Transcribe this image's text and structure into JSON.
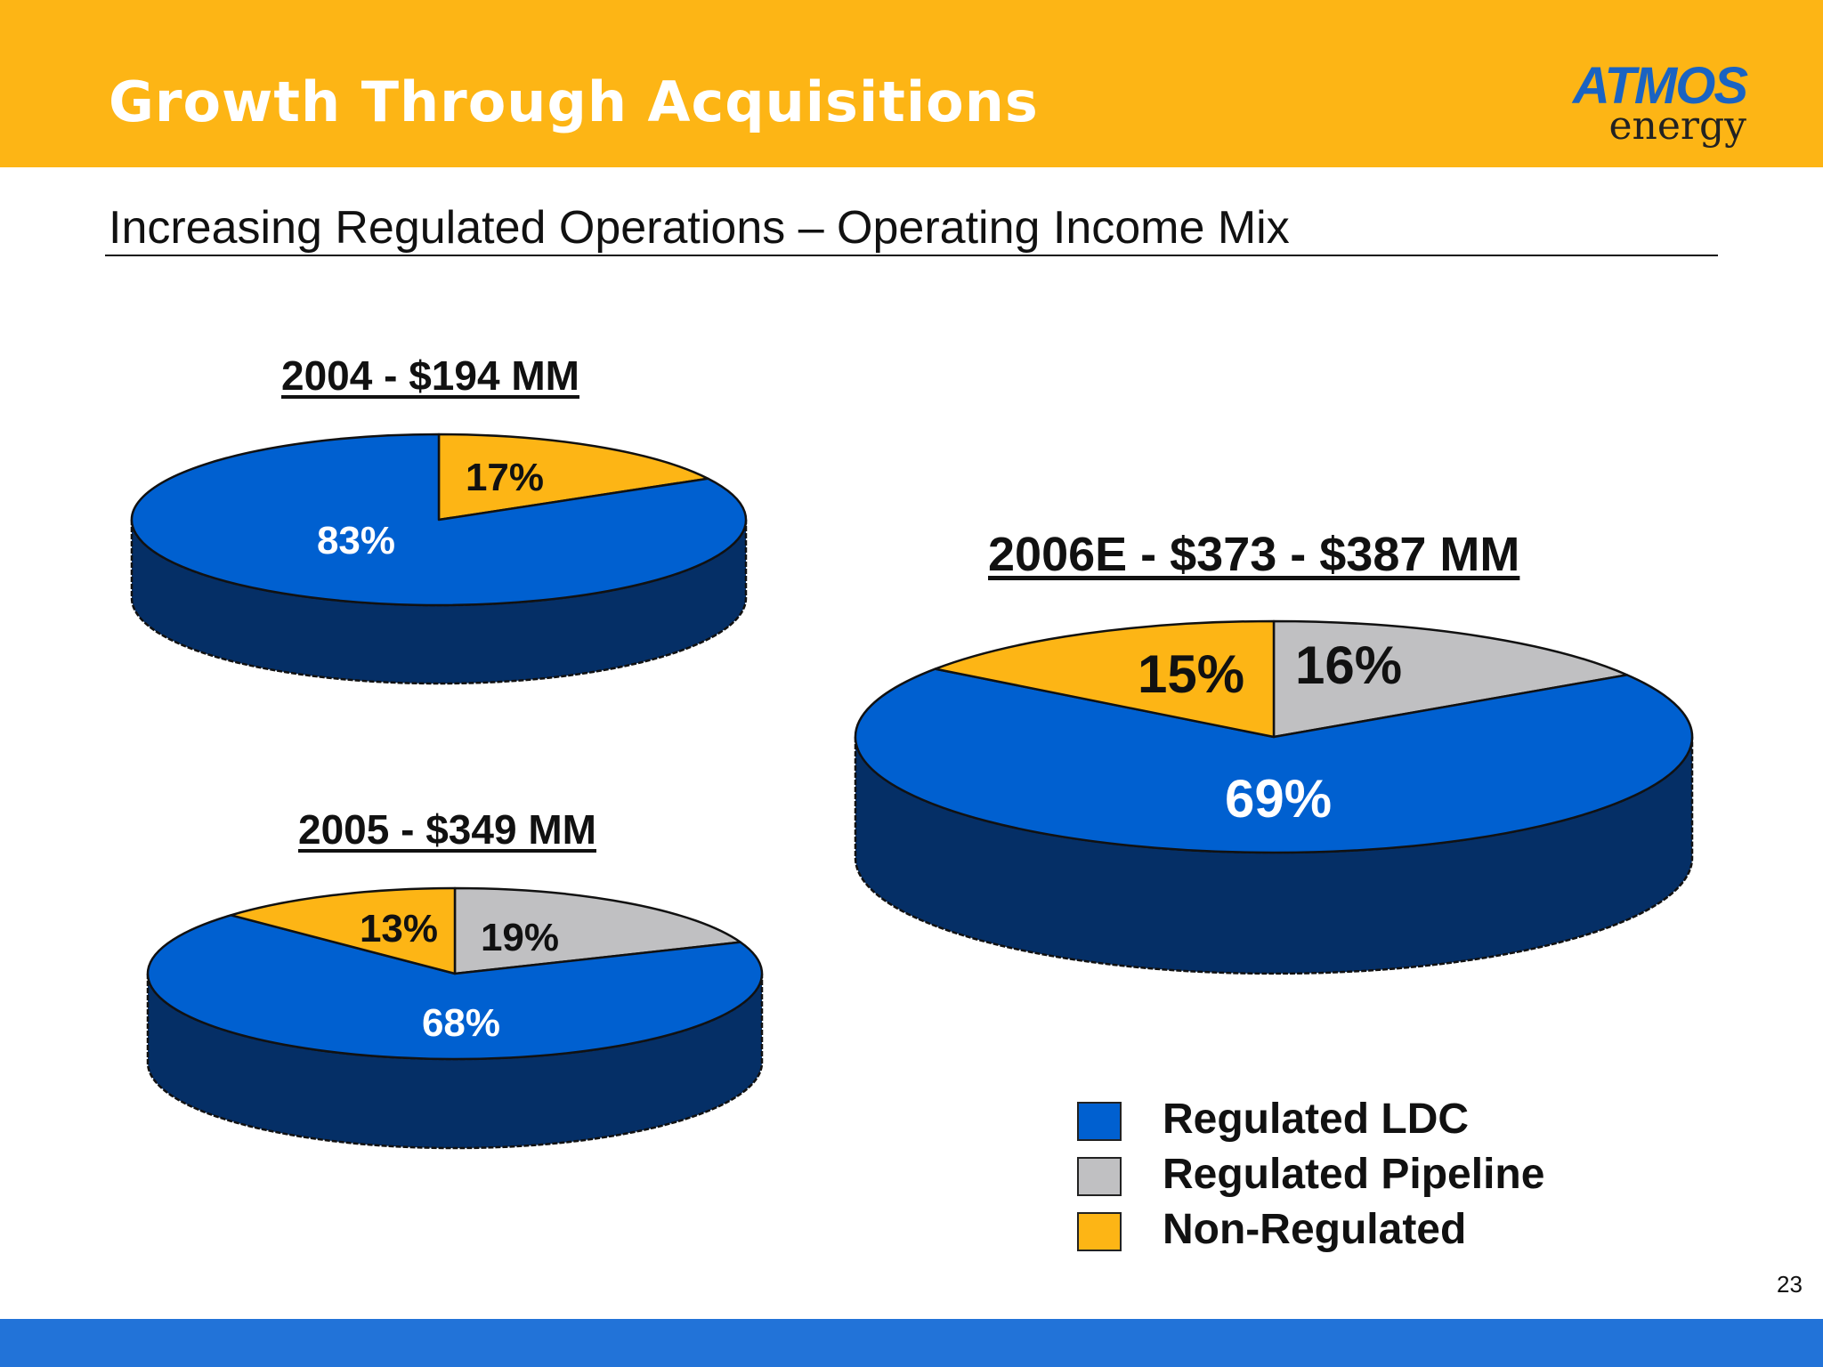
{
  "header": {
    "title": "Growth Through Acquisitions",
    "logo_main": "ATMOS",
    "logo_sub": "energy"
  },
  "subtitle": "Increasing Regulated Operations – Operating Income Mix",
  "colors": {
    "header_bg": "#FDB515",
    "footer_bg": "#2273D8",
    "regulated_ldc": "#0060D0",
    "regulated_ldc_side": "#052F66",
    "regulated_pipeline": "#C0C0C2",
    "non_regulated": "#FDB515"
  },
  "chart_data": [
    {
      "type": "pie",
      "title": "2004 - $194 MM",
      "slices": [
        {
          "name": "Regulated LDC",
          "value": 83,
          "label": "83%"
        },
        {
          "name": "Non-Regulated",
          "value": 17,
          "label": "17%"
        }
      ]
    },
    {
      "type": "pie",
      "title": "2005 - $349 MM",
      "slices": [
        {
          "name": "Regulated LDC",
          "value": 68,
          "label": "68%"
        },
        {
          "name": "Regulated Pipeline",
          "value": 19,
          "label": "19%"
        },
        {
          "name": "Non-Regulated",
          "value": 13,
          "label": "13%"
        }
      ]
    },
    {
      "type": "pie",
      "title": "2006E -  $373 - $387 MM",
      "slices": [
        {
          "name": "Regulated LDC",
          "value": 69,
          "label": "69%"
        },
        {
          "name": "Regulated Pipeline",
          "value": 16,
          "label": "16%"
        },
        {
          "name": "Non-Regulated",
          "value": 15,
          "label": "15%"
        }
      ]
    }
  ],
  "legend": [
    {
      "name": "Regulated LDC",
      "color": "#0060D0"
    },
    {
      "name": "Regulated Pipeline",
      "color": "#C0C0C2"
    },
    {
      "name": "Non-Regulated",
      "color": "#FDB515"
    }
  ],
  "page_number": "23"
}
